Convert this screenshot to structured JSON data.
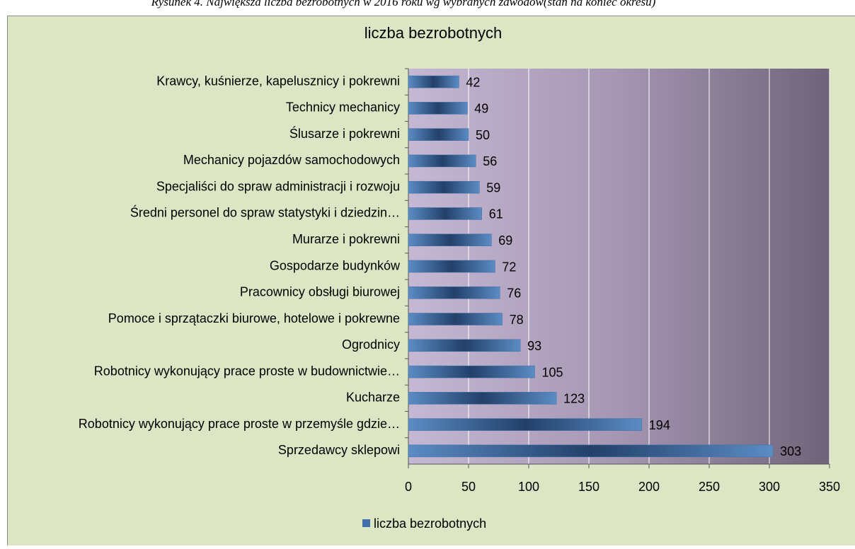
{
  "caption": "Rysunek 4. Największa liczba bezrobotnych w 2016 roku wg wybranych zawodów(stan na koniec okresu)",
  "chart_data": {
    "type": "barh",
    "title": "liczba bezrobotnych",
    "categories": [
      "Krawcy, kuśnierze, kapelusznicy i pokrewni",
      "Technicy mechanicy",
      "Ślusarze i pokrewni",
      "Mechanicy pojazdów samochodowych",
      "Specjaliści do spraw administracji i rozwoju",
      "Średni personel do spraw statystyki i dziedzin…",
      "Murarze i pokrewni",
      "Gospodarze budynków",
      "Pracownicy obsługi biurowej",
      "Pomoce i sprzątaczki biurowe, hotelowe i pokrewne",
      "Ogrodnicy",
      "Robotnicy wykonujący prace proste w budownictwie…",
      "Kucharze",
      "Robotnicy wykonujący prace proste w przemyśle gdzie…",
      "Sprzedawcy sklepowi"
    ],
    "series": [
      {
        "name": "liczba bezrobotnych",
        "color": "#3f6ea8",
        "values": [
          42,
          49,
          50,
          56,
          59,
          61,
          69,
          72,
          76,
          78,
          93,
          105,
          123,
          194,
          303
        ]
      }
    ],
    "xlim": [
      0,
      350
    ],
    "xticks": [
      0,
      50,
      100,
      150,
      200,
      250,
      300,
      350
    ],
    "grid": true,
    "legend": "bottom"
  }
}
